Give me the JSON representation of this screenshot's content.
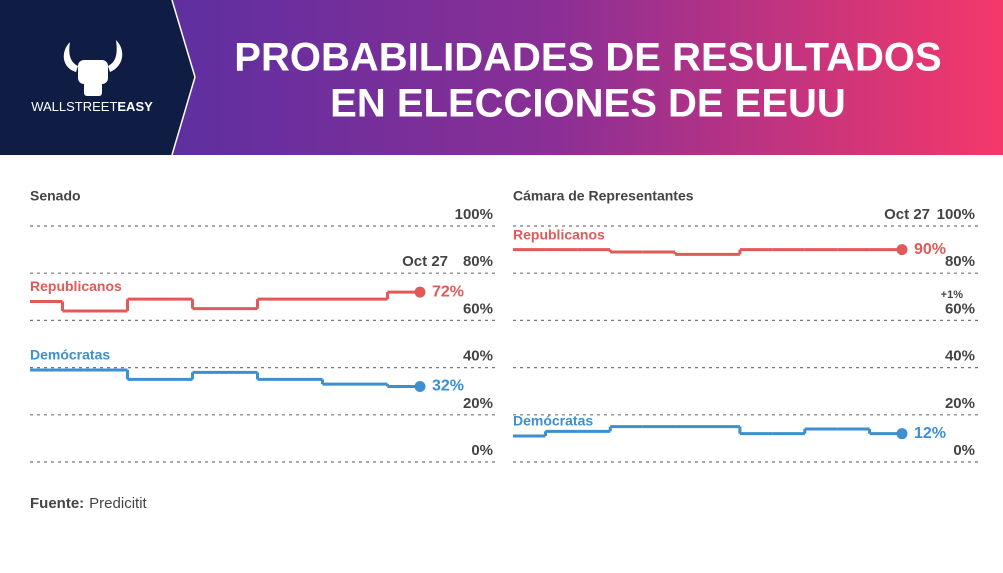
{
  "header": {
    "title_lines": [
      "PROBABILIDADES DE RESULTADOS",
      "EN ELECCIONES DE EEUU"
    ],
    "logo_parts": [
      "WALLSTREET",
      "EASY"
    ]
  },
  "source": {
    "label": "Fuente:",
    "text": "Predicitit"
  },
  "chart_data": [
    {
      "type": "line",
      "step": true,
      "title": "Senado",
      "categories": [
        null,
        null,
        null,
        null,
        null,
        null,
        null,
        null,
        null,
        null,
        null,
        null,
        "Oct 27"
      ],
      "ylim": [
        0,
        100
      ],
      "yticks": [
        {
          "value": 0,
          "label": "0%"
        },
        {
          "value": 20,
          "label": "20%"
        },
        {
          "value": 40,
          "label": "40%"
        },
        {
          "value": 60,
          "label": "60%"
        },
        {
          "value": 80,
          "label": "80%"
        },
        {
          "value": 100,
          "label": "100%"
        }
      ],
      "grid": true,
      "series": [
        {
          "name": "Republicanos",
          "color": "#e05a5a",
          "values": [
            68,
            64,
            64,
            69,
            69,
            65,
            65,
            69,
            69,
            69,
            69,
            72,
            72
          ],
          "value_labels": [
            null,
            null,
            null,
            null,
            null,
            null,
            null,
            null,
            null,
            null,
            null,
            null,
            "72%"
          ]
        },
        {
          "name": "Demócratas",
          "color": "#3d8fcf",
          "values": [
            39,
            39,
            39,
            35,
            35,
            38,
            38,
            35,
            35,
            33,
            33,
            32,
            32
          ],
          "value_labels": [
            null,
            null,
            null,
            null,
            null,
            null,
            null,
            null,
            null,
            null,
            null,
            null,
            "32%"
          ]
        }
      ]
    },
    {
      "type": "line",
      "step": true,
      "title": "Cámara de Representantes",
      "categories": [
        null,
        null,
        null,
        null,
        null,
        null,
        null,
        null,
        null,
        null,
        null,
        null,
        "Oct 27"
      ],
      "ylim": [
        0,
        100
      ],
      "yticks": [
        {
          "value": 0,
          "label": "0%"
        },
        {
          "value": 20,
          "label": "20%"
        },
        {
          "value": 40,
          "label": "40%"
        },
        {
          "value": 60,
          "label": "60%"
        },
        {
          "value": 80,
          "label": "80%"
        },
        {
          "value": 100,
          "label": "100%"
        }
      ],
      "grid": true,
      "annotations": [
        "+1%"
      ],
      "series": [
        {
          "name": "Republicanos",
          "color": "#e05a5a",
          "values": [
            90,
            90,
            90,
            89,
            89,
            88,
            88,
            90,
            90,
            90,
            90,
            90,
            90
          ],
          "value_labels": [
            null,
            null,
            null,
            null,
            null,
            null,
            null,
            null,
            null,
            null,
            null,
            null,
            "90%"
          ]
        },
        {
          "name": "Demócratas",
          "color": "#3d8fcf",
          "values": [
            11,
            13,
            13,
            15,
            15,
            15,
            15,
            12,
            12,
            14,
            14,
            12,
            12
          ],
          "value_labels": [
            null,
            null,
            null,
            null,
            null,
            null,
            null,
            null,
            null,
            null,
            null,
            null,
            "12%"
          ]
        }
      ]
    }
  ]
}
